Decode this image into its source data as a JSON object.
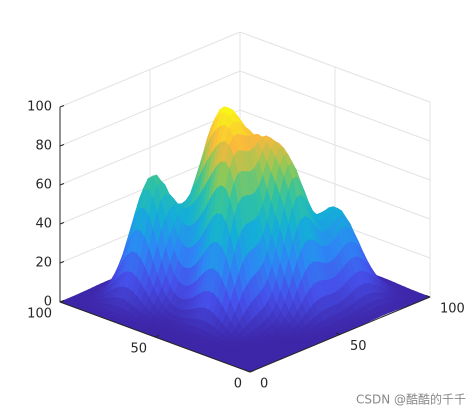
{
  "chart_data": {
    "type": "surface",
    "xlim": [
      0,
      100
    ],
    "xticks": [
      0,
      50,
      100
    ],
    "ylim": [
      0,
      100
    ],
    "yticks": [
      0,
      50,
      100
    ],
    "zlim": [
      0,
      100
    ],
    "zticks": [
      0,
      20,
      40,
      60,
      80,
      100
    ],
    "grid": true,
    "colormap": "parula",
    "peaks": [
      {
        "x": 26,
        "y": 76,
        "z": 62,
        "width": 8
      },
      {
        "x": 42,
        "y": 57,
        "z": 80,
        "width": 9
      },
      {
        "x": 54,
        "y": 42,
        "z": 58,
        "width": 8
      },
      {
        "x": 36,
        "y": 44,
        "z": 50,
        "width": 8
      },
      {
        "x": 53,
        "y": 28,
        "z": 56,
        "width": 8
      },
      {
        "x": 75,
        "y": 26,
        "z": 45,
        "width": 9
      },
      {
        "x": 30,
        "y": 38,
        "z": 30,
        "width": 7
      }
    ]
  },
  "watermark": "CSDN @酷酷的千千"
}
